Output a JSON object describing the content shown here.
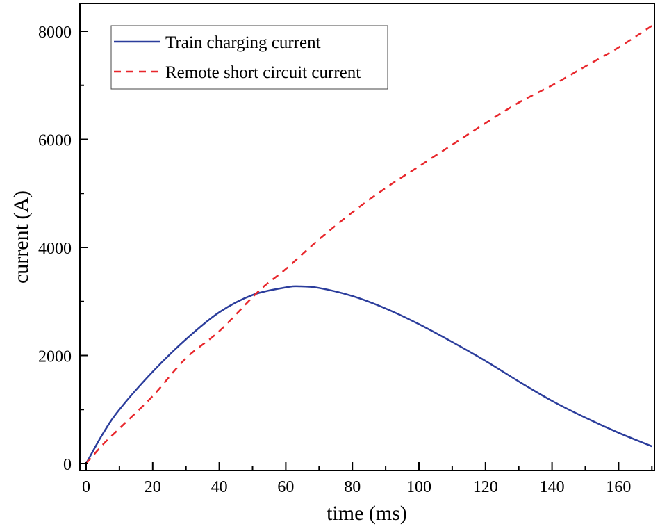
{
  "chart_data": {
    "type": "line",
    "title": "",
    "xlabel": "time (ms)",
    "ylabel": "current (A)",
    "xlim": [
      -2,
      171
    ],
    "ylim": [
      -150,
      8300
    ],
    "xticks": [
      0,
      20,
      40,
      60,
      80,
      100,
      120,
      140,
      160
    ],
    "yticks": [
      0,
      2000,
      4000,
      6000,
      8000
    ],
    "grid": false,
    "legend": "top-left",
    "series": [
      {
        "name": "Train charging current",
        "color": "#2b3d9c",
        "style": "solid",
        "x": [
          0,
          5,
          10,
          20,
          30,
          40,
          50,
          60,
          64,
          70,
          80,
          90,
          100,
          110,
          120,
          130,
          140,
          150,
          160,
          170
        ],
        "y": [
          0,
          550,
          1000,
          1700,
          2300,
          2800,
          3120,
          3260,
          3280,
          3250,
          3100,
          2870,
          2580,
          2250,
          1900,
          1520,
          1160,
          850,
          570,
          320
        ]
      },
      {
        "name": "Remote short circuit current",
        "color": "#e8262b",
        "style": "dashed",
        "x": [
          0,
          5,
          10,
          20,
          30,
          40,
          52,
          60,
          70,
          80,
          90,
          100,
          110,
          120,
          130,
          140,
          150,
          160,
          170
        ],
        "y": [
          0,
          350,
          650,
          1250,
          1950,
          2450,
          3200,
          3600,
          4150,
          4650,
          5100,
          5500,
          5900,
          6300,
          6680,
          7000,
          7350,
          7700,
          8100
        ]
      }
    ]
  }
}
